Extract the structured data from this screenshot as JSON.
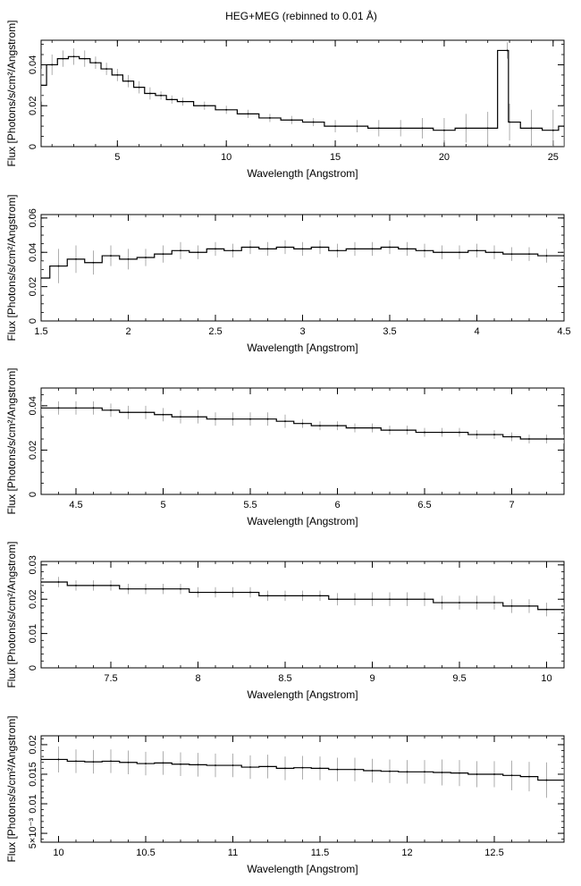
{
  "figure": {
    "title": "HEG+MEG (rebinned to 0.01 Å)"
  },
  "chart_data": [
    {
      "type": "line",
      "style": "step-with-errorbars",
      "xlabel": "Wavelength [Angstrom]",
      "ylabel": "Flux [Photons/s/cm²/Angstrom]",
      "xlim": [
        1.5,
        25.5
      ],
      "ylim": [
        0,
        0.052
      ],
      "xticks": [
        5,
        10,
        15,
        20,
        25
      ],
      "yticks": [
        0,
        0.02,
        0.04
      ],
      "ytick_labels": [
        "0",
        "0.02",
        "0.04"
      ],
      "series": [
        {
          "x": [
            1.5,
            2.0,
            2.5,
            3.0,
            3.5,
            4.0,
            4.5,
            5.0,
            5.5,
            6.0,
            6.5,
            7.0,
            7.5,
            8.0,
            9.0,
            10.0,
            11.0,
            12.0,
            13.0,
            14.0,
            15.0,
            16.0,
            17.0,
            18.0,
            19.0,
            20.0,
            21.0,
            22.0,
            22.9,
            23.0,
            24.0,
            25.0,
            25.5
          ],
          "y": [
            0.03,
            0.04,
            0.043,
            0.044,
            0.043,
            0.041,
            0.038,
            0.035,
            0.032,
            0.029,
            0.026,
            0.025,
            0.023,
            0.022,
            0.02,
            0.018,
            0.016,
            0.014,
            0.013,
            0.012,
            0.01,
            0.01,
            0.009,
            0.009,
            0.009,
            0.008,
            0.009,
            0.009,
            0.047,
            0.012,
            0.009,
            0.008,
            0.01
          ],
          "yerr": [
            0.008,
            0.005,
            0.004,
            0.004,
            0.004,
            0.003,
            0.003,
            0.003,
            0.003,
            0.003,
            0.003,
            0.002,
            0.002,
            0.002,
            0.002,
            0.002,
            0.002,
            0.002,
            0.002,
            0.002,
            0.003,
            0.003,
            0.004,
            0.004,
            0.005,
            0.006,
            0.007,
            0.008,
            0.004,
            0.009,
            0.009,
            0.01,
            0.01
          ]
        }
      ]
    },
    {
      "type": "line",
      "style": "step-with-errorbars",
      "xlabel": "Wavelength [Angstrom]",
      "ylabel": "Flux [Photons/s/cm²/Angstrom]",
      "xlim": [
        1.5,
        4.5
      ],
      "ylim": [
        0,
        0.062
      ],
      "xticks": [
        1.5,
        2,
        2.5,
        3,
        3.5,
        4,
        4.5
      ],
      "yticks": [
        0,
        0.02,
        0.04,
        0.06
      ],
      "ytick_labels": [
        "0",
        "0.02",
        "0.04",
        "0.06"
      ],
      "series": [
        {
          "x": [
            1.5,
            1.6,
            1.7,
            1.8,
            1.9,
            2.0,
            2.1,
            2.2,
            2.3,
            2.4,
            2.5,
            2.6,
            2.7,
            2.8,
            2.9,
            3.0,
            3.1,
            3.2,
            3.3,
            3.4,
            3.5,
            3.6,
            3.7,
            3.8,
            3.9,
            4.0,
            4.1,
            4.2,
            4.3,
            4.4,
            4.5
          ],
          "y": [
            0.025,
            0.032,
            0.036,
            0.034,
            0.038,
            0.036,
            0.037,
            0.039,
            0.041,
            0.04,
            0.042,
            0.041,
            0.043,
            0.042,
            0.043,
            0.042,
            0.043,
            0.041,
            0.042,
            0.042,
            0.043,
            0.042,
            0.041,
            0.04,
            0.04,
            0.041,
            0.04,
            0.039,
            0.039,
            0.038,
            0.038
          ],
          "yerr": [
            0.01,
            0.01,
            0.008,
            0.007,
            0.006,
            0.006,
            0.005,
            0.005,
            0.005,
            0.004,
            0.004,
            0.004,
            0.004,
            0.004,
            0.004,
            0.004,
            0.004,
            0.004,
            0.004,
            0.004,
            0.004,
            0.004,
            0.004,
            0.004,
            0.004,
            0.004,
            0.004,
            0.004,
            0.004,
            0.004,
            0.004
          ]
        }
      ]
    },
    {
      "type": "line",
      "style": "step-with-errorbars",
      "xlabel": "Wavelength [Angstrom]",
      "ylabel": "Flux [Photons/s/cm²/Angstrom]",
      "xlim": [
        4.3,
        7.3
      ],
      "ylim": [
        0,
        0.048
      ],
      "xticks": [
        4.5,
        5,
        5.5,
        6,
        6.5,
        7
      ],
      "yticks": [
        0,
        0.02,
        0.04
      ],
      "ytick_labels": [
        "0",
        "0.02",
        "0.04"
      ],
      "series": [
        {
          "x": [
            4.3,
            4.4,
            4.5,
            4.6,
            4.7,
            4.8,
            4.9,
            5.0,
            5.1,
            5.2,
            5.3,
            5.4,
            5.5,
            5.6,
            5.7,
            5.8,
            5.9,
            6.0,
            6.1,
            6.2,
            6.3,
            6.4,
            6.5,
            6.6,
            6.7,
            6.8,
            6.9,
            7.0,
            7.1,
            7.2,
            7.3
          ],
          "y": [
            0.039,
            0.039,
            0.039,
            0.039,
            0.038,
            0.037,
            0.037,
            0.036,
            0.035,
            0.035,
            0.034,
            0.034,
            0.034,
            0.034,
            0.033,
            0.032,
            0.031,
            0.031,
            0.03,
            0.03,
            0.029,
            0.029,
            0.028,
            0.028,
            0.028,
            0.027,
            0.027,
            0.026,
            0.025,
            0.025,
            0.025
          ],
          "yerr": [
            0.003,
            0.003,
            0.003,
            0.003,
            0.003,
            0.003,
            0.003,
            0.003,
            0.003,
            0.003,
            0.003,
            0.003,
            0.003,
            0.003,
            0.003,
            0.002,
            0.002,
            0.002,
            0.002,
            0.002,
            0.002,
            0.002,
            0.002,
            0.002,
            0.002,
            0.002,
            0.002,
            0.002,
            0.002,
            0.002,
            0.002
          ]
        }
      ]
    },
    {
      "type": "line",
      "style": "step-with-errorbars",
      "xlabel": "Wavelength [Angstrom]",
      "ylabel": "Flux [Photons/s/cm²/Angstrom]",
      "xlim": [
        7.1,
        10.1
      ],
      "ylim": [
        0,
        0.031
      ],
      "xticks": [
        7.5,
        8,
        8.5,
        9,
        9.5,
        10
      ],
      "yticks": [
        0,
        0.01,
        0.02,
        0.03
      ],
      "ytick_labels": [
        "0",
        "0.01",
        "0.02",
        "0.03"
      ],
      "series": [
        {
          "x": [
            7.1,
            7.2,
            7.3,
            7.4,
            7.5,
            7.6,
            7.7,
            7.8,
            7.9,
            8.0,
            8.1,
            8.2,
            8.3,
            8.4,
            8.5,
            8.6,
            8.7,
            8.8,
            8.9,
            9.0,
            9.1,
            9.2,
            9.3,
            9.4,
            9.5,
            9.6,
            9.7,
            9.8,
            9.9,
            10.0,
            10.1
          ],
          "y": [
            0.025,
            0.025,
            0.024,
            0.024,
            0.024,
            0.023,
            0.023,
            0.023,
            0.023,
            0.022,
            0.022,
            0.022,
            0.022,
            0.021,
            0.021,
            0.021,
            0.021,
            0.02,
            0.02,
            0.02,
            0.02,
            0.02,
            0.02,
            0.019,
            0.019,
            0.019,
            0.019,
            0.018,
            0.018,
            0.017,
            0.017
          ],
          "yerr": [
            0.0015,
            0.0015,
            0.0015,
            0.0015,
            0.0015,
            0.0015,
            0.0015,
            0.0015,
            0.0015,
            0.0015,
            0.0015,
            0.0015,
            0.0015,
            0.0015,
            0.0015,
            0.0015,
            0.0015,
            0.0018,
            0.0018,
            0.002,
            0.002,
            0.002,
            0.002,
            0.002,
            0.002,
            0.002,
            0.002,
            0.002,
            0.002,
            0.002,
            0.002
          ]
        }
      ]
    },
    {
      "type": "line",
      "style": "step-with-errorbars",
      "xlabel": "Wavelength [Angstrom]",
      "ylabel": "Flux [Photons/s/cm²/Angstrom]",
      "xlim": [
        9.9,
        12.9
      ],
      "ylim": [
        0.0035,
        0.0215
      ],
      "xticks": [
        10,
        10.5,
        11,
        11.5,
        12,
        12.5
      ],
      "yticks": [
        0.005,
        0.01,
        0.015,
        0.02
      ],
      "ytick_labels": [
        "5×10⁻³",
        "0.01",
        "0.015",
        "0.02"
      ],
      "series": [
        {
          "x": [
            9.9,
            10.0,
            10.1,
            10.2,
            10.3,
            10.4,
            10.5,
            10.6,
            10.7,
            10.8,
            10.9,
            11.0,
            11.1,
            11.2,
            11.3,
            11.4,
            11.5,
            11.6,
            11.7,
            11.8,
            11.9,
            12.0,
            12.1,
            12.2,
            12.3,
            12.4,
            12.5,
            12.6,
            12.7,
            12.8,
            12.9
          ],
          "y": [
            0.0175,
            0.0175,
            0.0172,
            0.0171,
            0.0172,
            0.017,
            0.0168,
            0.0169,
            0.0167,
            0.0166,
            0.0165,
            0.0165,
            0.0162,
            0.0163,
            0.016,
            0.0161,
            0.016,
            0.0158,
            0.0158,
            0.0156,
            0.0155,
            0.0154,
            0.0154,
            0.0153,
            0.0152,
            0.015,
            0.015,
            0.0148,
            0.0146,
            0.014,
            0.014
          ],
          "yerr": [
            0.0025,
            0.0022,
            0.002,
            0.002,
            0.002,
            0.002,
            0.002,
            0.002,
            0.002,
            0.002,
            0.002,
            0.002,
            0.002,
            0.002,
            0.002,
            0.002,
            0.002,
            0.002,
            0.002,
            0.002,
            0.002,
            0.002,
            0.002,
            0.0022,
            0.0022,
            0.0022,
            0.0022,
            0.0025,
            0.0025,
            0.003,
            0.003
          ]
        }
      ]
    }
  ]
}
